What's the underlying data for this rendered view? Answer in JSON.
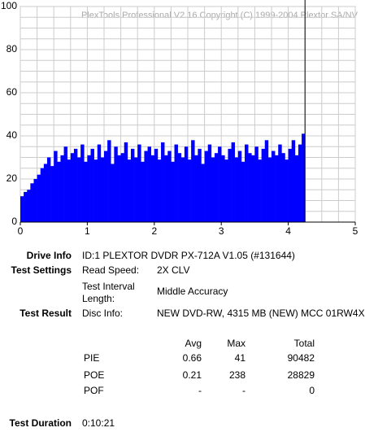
{
  "chart_data": {
    "type": "histogram",
    "watermark": "PlexTools Professional V2.16 Copyright (C) 1999-2004 Plextor SA/NV",
    "bins": [
      0,
      0.05,
      0.1,
      0.15,
      0.2,
      0.25,
      0.3,
      0.35,
      0.4,
      0.45,
      0.5,
      0.55,
      0.6,
      0.65,
      0.7,
      0.75,
      0.8,
      0.85,
      0.9,
      0.95,
      1,
      1.05,
      1.1,
      1.15,
      1.2,
      1.25,
      1.3,
      1.35,
      1.4,
      1.45,
      1.5,
      1.55,
      1.6,
      1.65,
      1.7,
      1.75,
      1.8,
      1.85,
      1.9,
      1.95,
      2,
      2.05,
      2.1,
      2.15,
      2.2,
      2.25,
      2.3,
      2.35,
      2.4,
      2.45,
      2.5,
      2.55,
      2.6,
      2.65,
      2.7,
      2.75,
      2.8,
      2.85,
      2.9,
      2.95,
      3,
      3.05,
      3.1,
      3.15,
      3.2,
      3.25,
      3.3,
      3.35,
      3.4,
      3.45,
      3.5,
      3.55,
      3.6,
      3.65,
      3.7,
      3.75,
      3.8,
      3.85,
      3.9,
      3.95,
      4,
      4.05,
      4.1,
      4.15,
      4.2,
      4.25
    ],
    "values": [
      12,
      14,
      15,
      18,
      20,
      22,
      25,
      27,
      30,
      26,
      33,
      28,
      31,
      35,
      29,
      32,
      34,
      30,
      36,
      28,
      31,
      34,
      29,
      36,
      30,
      33,
      38,
      27,
      35,
      31,
      32,
      37,
      29,
      34,
      30,
      36,
      28,
      33,
      35,
      31,
      34,
      29,
      37,
      31,
      33,
      28,
      36,
      32,
      30,
      35,
      29,
      38,
      31,
      34,
      27,
      33,
      36,
      30,
      32,
      35,
      31,
      29,
      34,
      37,
      30,
      33,
      28,
      36,
      32,
      31,
      35,
      29,
      34,
      38,
      30,
      33,
      31,
      36,
      32,
      29,
      34,
      38,
      31,
      36,
      41
    ],
    "color": "#0000ff",
    "end_line_x": 4.25,
    "xlim": [
      0,
      5
    ],
    "xticks": [
      0,
      1,
      2,
      3,
      4,
      5
    ],
    "ylim": [
      0,
      100
    ],
    "yticks": [
      0,
      20,
      40,
      60,
      80,
      100
    ],
    "grid": true,
    "grid_subdivisions": 4
  },
  "report": {
    "drive_info": {
      "label": "Drive Info",
      "value": "ID:1 PLEXTOR DVDR PX-712A V1.05 (#131644)"
    },
    "test_settings": {
      "label": "Test Settings",
      "read_speed_label": "Read Speed:",
      "read_speed": "2X CLV",
      "interval_label": "Test Interval Length:",
      "interval": "Middle Accuracy"
    },
    "test_result": {
      "label": "Test Result",
      "disc_info_label": "Disc Info:",
      "disc_info": "NEW DVD-RW, 4315 MB (NEW) MCC 01RW4X"
    },
    "table": {
      "columns": [
        "Avg",
        "Max",
        "Total"
      ],
      "rows": [
        [
          "PIE",
          0.66,
          41,
          90482
        ],
        [
          "POE",
          0.21,
          238,
          28829
        ],
        [
          "POF",
          "-",
          "-",
          0
        ]
      ]
    },
    "test_duration": {
      "label": "Test Duration",
      "value": "0:10:21"
    }
  }
}
